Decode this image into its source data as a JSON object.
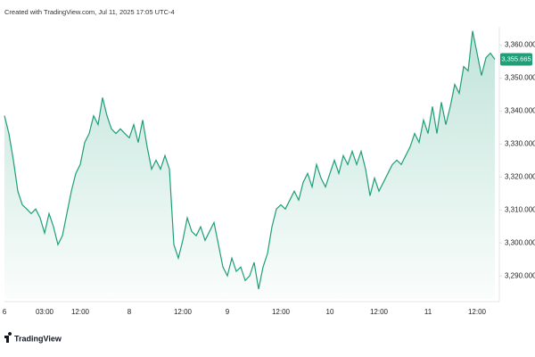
{
  "chart_data": {
    "type": "area",
    "caption": "Created with TradingView.com, Jul 11, 2025 17:05 UTC-4",
    "watermark": "TradingView",
    "color": "#1f9e78",
    "values": [
      3338.6,
      3333.2,
      3325.1,
      3315.7,
      3311.6,
      3310.3,
      3308.9,
      3310.3,
      3307.6,
      3303,
      3308.9,
      3304.9,
      3299.5,
      3302.2,
      3308.9,
      3315.7,
      3321.1,
      3323.8,
      3330.5,
      3333.2,
      3338.6,
      3335.9,
      3344.1,
      3338.6,
      3334.6,
      3333.2,
      3334.6,
      3333.2,
      3331.9,
      3335.9,
      3330.5,
      3337.3,
      3329.2,
      3322.4,
      3325.1,
      3322.4,
      3326.5,
      3322.4,
      3299.5,
      3295.4,
      3300.8,
      3307.6,
      3303.5,
      3302.2,
      3304.9,
      3300.8,
      3303.5,
      3306.2,
      3299.5,
      3292.7,
      3290,
      3295.4,
      3291.4,
      3292.7,
      3288.6,
      3290,
      3294.1,
      3286,
      3292.7,
      3296.8,
      3304.9,
      3310.3,
      3311.6,
      3310.3,
      3313,
      3315.7,
      3313,
      3318.4,
      3321.1,
      3317,
      3323.8,
      3319.7,
      3317,
      3321.1,
      3325.1,
      3321.1,
      3326.5,
      3323.8,
      3327.8,
      3323.8,
      3327.8,
      3322.4,
      3314.3,
      3319.7,
      3315.7,
      3318.4,
      3321.1,
      3323.8,
      3325.1,
      3323.8,
      3326.5,
      3329.2,
      3333.2,
      3330.5,
      3337.3,
      3333.2,
      3341.4,
      3333.2,
      3342.7,
      3335.9,
      3341.4,
      3348.1,
      3345.4,
      3353.5,
      3352.2,
      3364.3,
      3357.6,
      3350.8,
      3356.2,
      3357.6,
      3355.7
    ],
    "last_price_label": "3,355.665",
    "xlim": [
      0,
      110
    ],
    "xticks": [
      {
        "value": 0,
        "label": "6"
      },
      {
        "value": 9,
        "label": "03:00"
      },
      {
        "value": 17,
        "label": "12:00"
      },
      {
        "value": 28,
        "label": "8"
      },
      {
        "value": 40,
        "label": "12:00"
      },
      {
        "value": 50,
        "label": "9"
      },
      {
        "value": 62,
        "label": "12:00"
      },
      {
        "value": 73,
        "label": "10"
      },
      {
        "value": 84,
        "label": "12:00"
      },
      {
        "value": 95,
        "label": "11"
      },
      {
        "value": 106,
        "label": "12:00"
      }
    ],
    "ylim": [
      3283,
      3371
    ],
    "yticks": [
      {
        "value": 3290,
        "label": "3,290.000"
      },
      {
        "value": 3300,
        "label": "3,300.000"
      },
      {
        "value": 3310,
        "label": "3,310.000"
      },
      {
        "value": 3320,
        "label": "3,320.000"
      },
      {
        "value": 3330,
        "label": "3,330.000"
      },
      {
        "value": 3340,
        "label": "3,340.000"
      },
      {
        "value": 3350,
        "label": "3,350.000"
      },
      {
        "value": 3360,
        "label": "3,360.000"
      }
    ],
    "grid": false
  }
}
